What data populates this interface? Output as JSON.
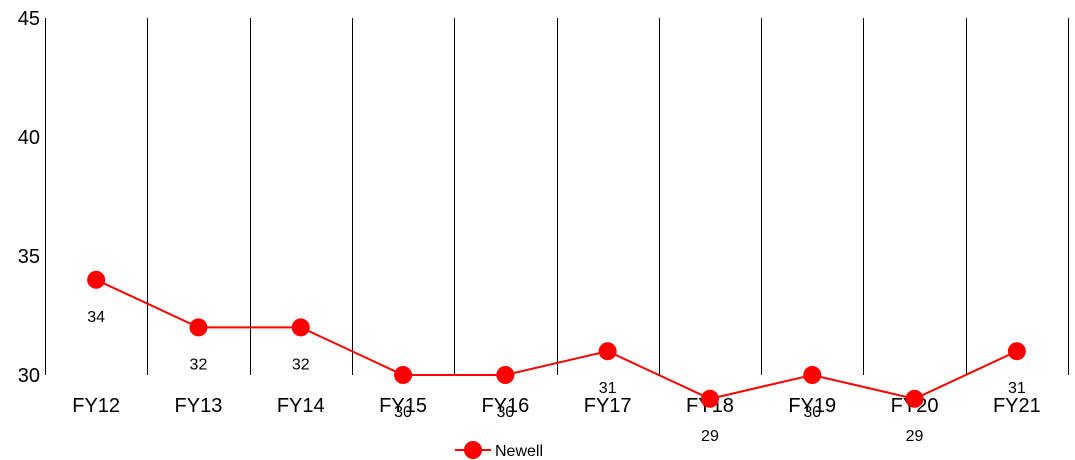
{
  "chart_data": {
    "type": "line",
    "title": "",
    "xlabel": "",
    "ylabel": "",
    "categories": [
      "FY12",
      "FY13",
      "FY14",
      "FY15",
      "FY16",
      "FY17",
      "FY18",
      "FY19",
      "FY20",
      "FY21"
    ],
    "series": [
      {
        "name": "Newell",
        "values": [
          34,
          32,
          32,
          30,
          30,
          31,
          29,
          30,
          29,
          31
        ],
        "color": "#ff0000",
        "marker": "circle"
      }
    ],
    "ylim": [
      30,
      45
    ],
    "yticks": [
      30,
      35,
      40,
      45
    ],
    "grid": "vertical lines between categories",
    "legend": "bottom-center",
    "data_labels": "below each point"
  }
}
